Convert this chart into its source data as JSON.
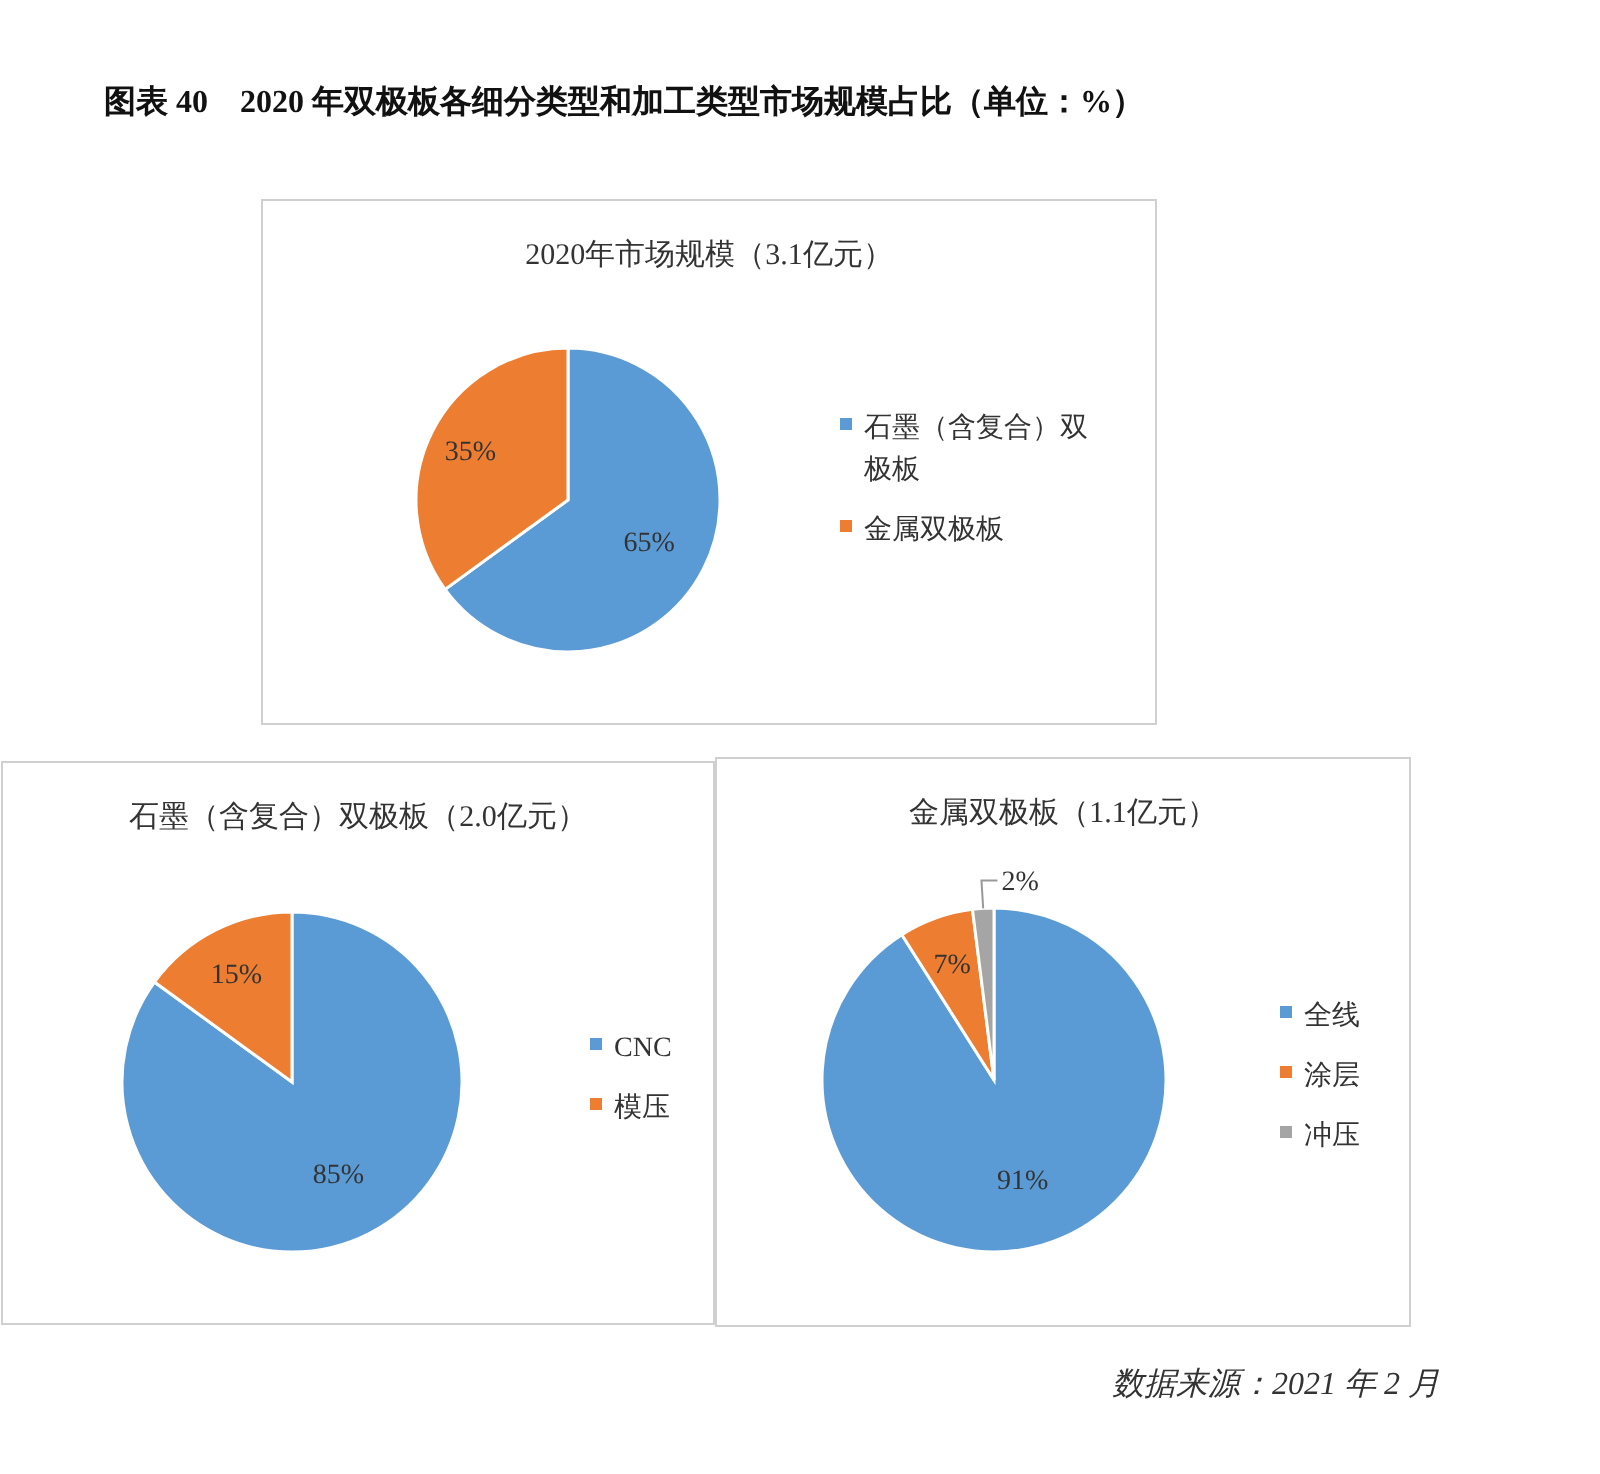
{
  "chart_data": [
    {
      "type": "other",
      "title": "图表 40　2020 年双极板各细分类型和加工类型市场规模占比（单位：%）",
      "annotations": [
        "数据来源：2021 年 2 月"
      ]
    },
    {
      "type": "pie",
      "title": "2020年市场规模（3.1亿元）",
      "categories": [
        "石墨（含复合）双极板",
        "金属双极板"
      ],
      "values": [
        65,
        35
      ],
      "value_labels": [
        "65%",
        "35%"
      ],
      "colors": [
        "#5b9bd5",
        "#ed7d31"
      ],
      "legend": "right"
    },
    {
      "type": "pie",
      "title": "石墨（含复合）双极板（2.0亿元）",
      "categories": [
        "CNC",
        "模压"
      ],
      "values": [
        85,
        15
      ],
      "value_labels": [
        "85%",
        "15%"
      ],
      "colors": [
        "#5b9bd5",
        "#ed7d31"
      ],
      "legend": "right"
    },
    {
      "type": "pie",
      "title": "金属双极板（1.1亿元）",
      "categories": [
        "全线",
        "涂层",
        "冲压"
      ],
      "values": [
        91,
        7,
        2
      ],
      "value_labels": [
        "91%",
        "7%",
        "2%"
      ],
      "colors": [
        "#5b9bd5",
        "#ed7d31",
        "#a5a5a5"
      ],
      "legend": "right"
    }
  ]
}
